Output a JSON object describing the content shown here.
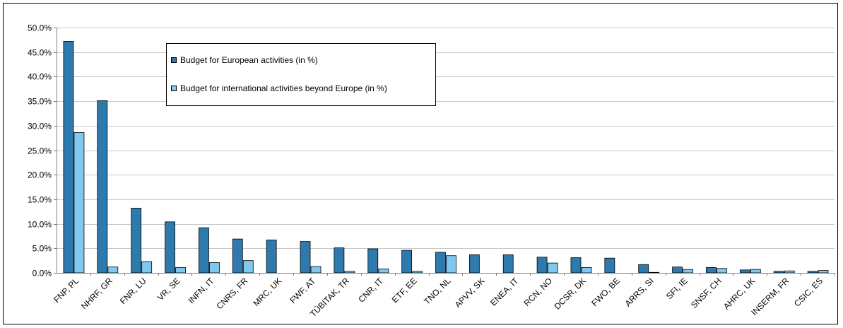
{
  "chart_data": {
    "type": "bar",
    "categories": [
      "FNP, PL",
      "NHRF, GR",
      "FNR, LU",
      "VR, SE",
      "INFN, IT",
      "CNRS, FR",
      "MRC, UK",
      "FWF, AT",
      "TÜBITAK, TR",
      "CNR, IT",
      "ETF, EE",
      "TNO, NL",
      "APVV, SK",
      "ENEA, IT",
      "RCN, NO",
      "DCSR, DK",
      "FWO, BE",
      "ARRS, SI",
      "SFI, IE",
      "SNSF, CH",
      "AHRC, UK",
      "INSERM, FR",
      "CSIC, ES"
    ],
    "series": [
      {
        "name": "Budget for European activities (in %)",
        "color": "#2f7aad",
        "values": [
          47.2,
          35.1,
          13.2,
          10.4,
          9.2,
          6.9,
          6.7,
          6.4,
          5.1,
          4.9,
          4.6,
          4.2,
          3.7,
          3.7,
          3.2,
          3.1,
          3.0,
          1.7,
          1.2,
          1.1,
          0.6,
          0.3,
          0.3
        ]
      },
      {
        "name": "Budget for international activities beyond Europe (in %)",
        "color": "#7fc8ee",
        "values": [
          28.6,
          1.2,
          2.3,
          1.1,
          2.1,
          2.5,
          0.0,
          1.3,
          0.3,
          0.8,
          0.3,
          3.5,
          0.0,
          0.0,
          2.0,
          1.1,
          0.0,
          0.1,
          0.7,
          0.9,
          0.7,
          0.4,
          0.5
        ]
      }
    ],
    "ylim": [
      0,
      50
    ],
    "yticks": [
      0,
      5,
      10,
      15,
      20,
      25,
      30,
      35,
      40,
      45,
      50
    ],
    "ytick_labels": [
      "0.0%",
      "5.0%",
      "10.0%",
      "15.0%",
      "20.0%",
      "25.0%",
      "30.0%",
      "35.0%",
      "40.0%",
      "45.0%",
      "50.0%"
    ],
    "grid": true,
    "legend_position": "top-left"
  }
}
